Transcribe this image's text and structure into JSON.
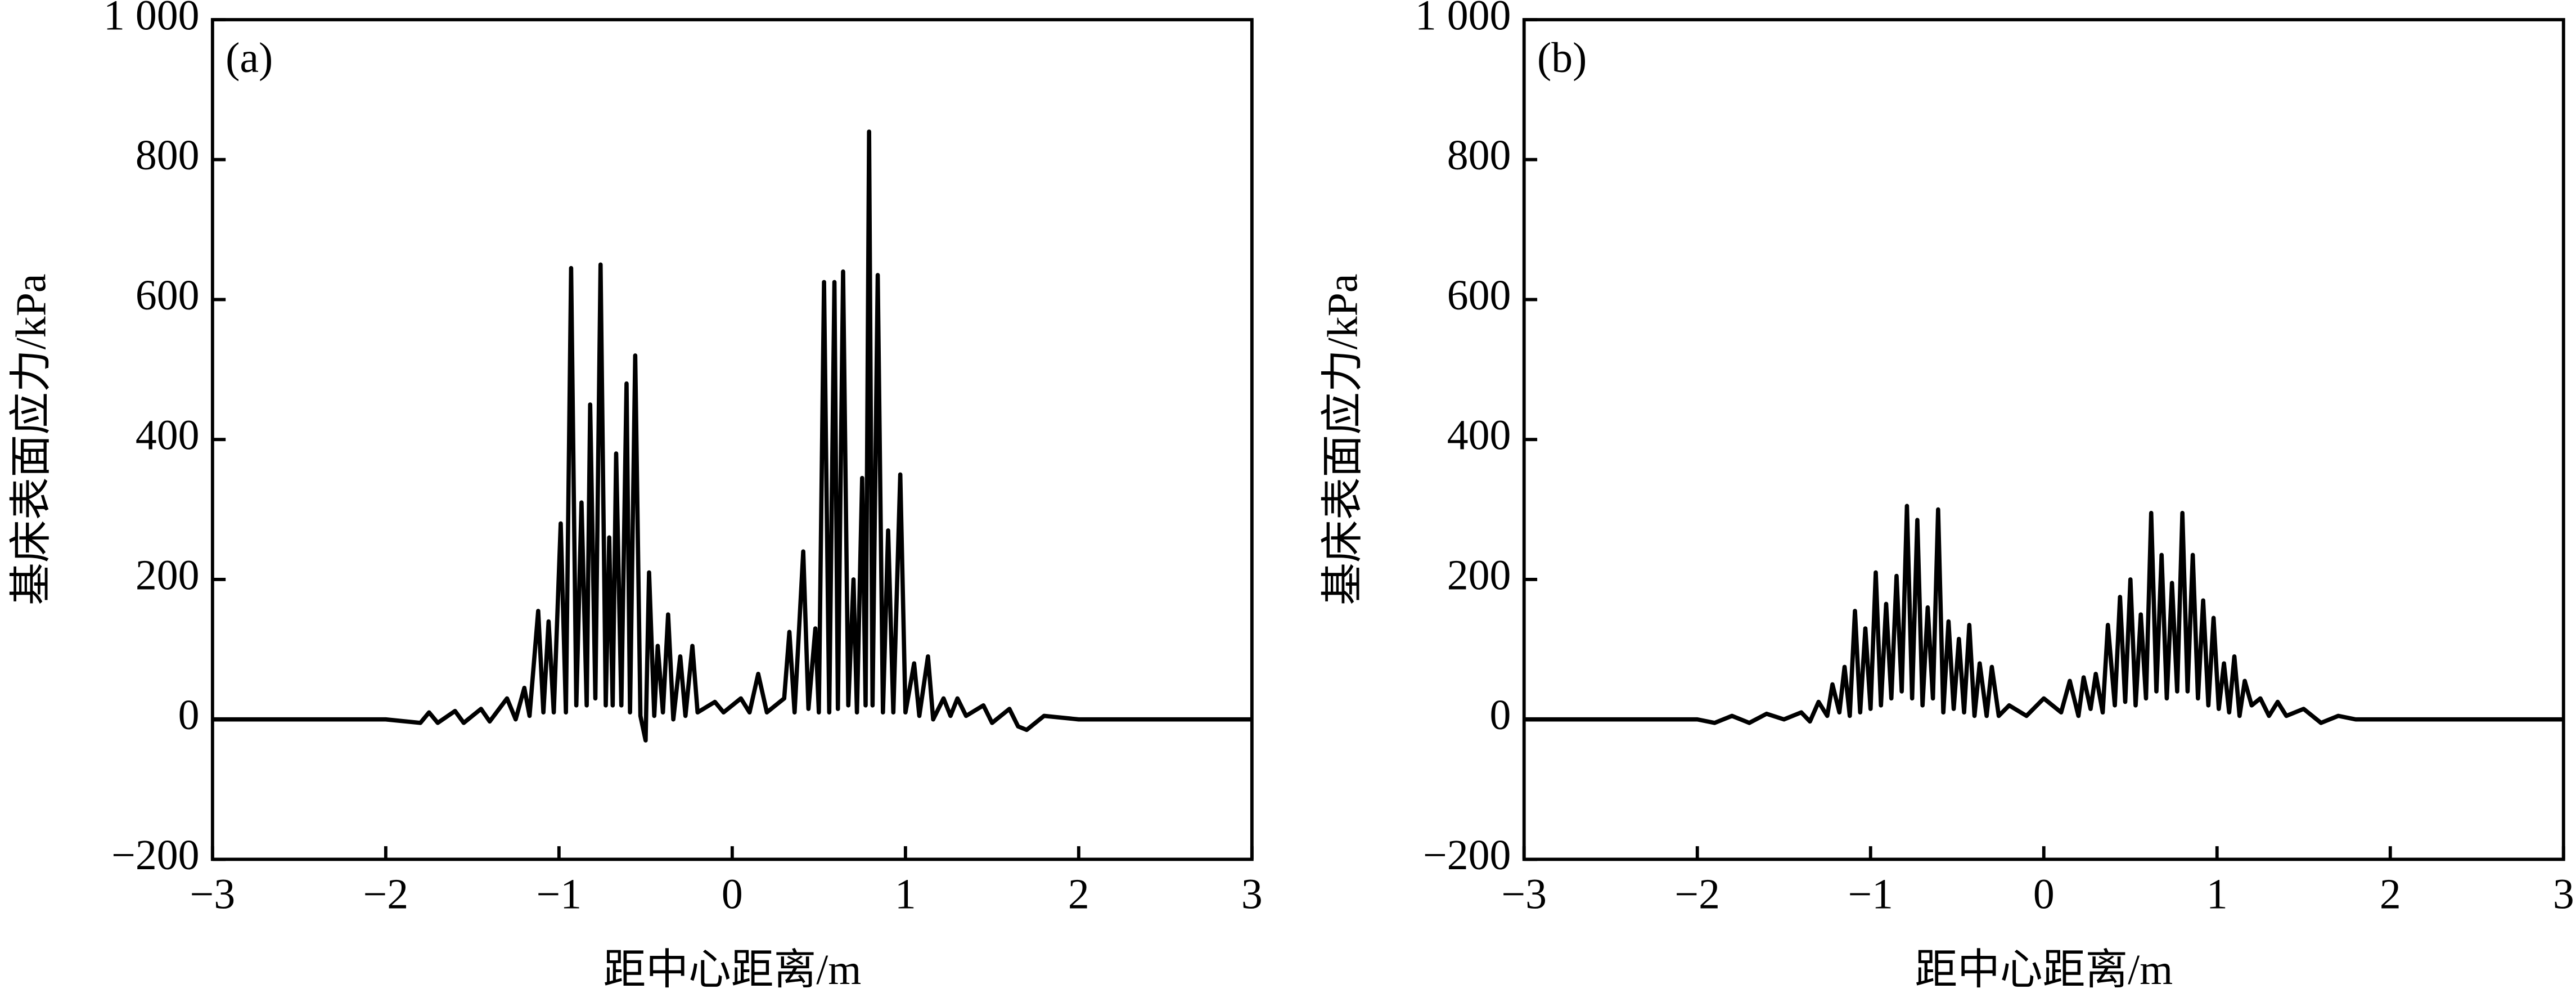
{
  "chart_data": [
    {
      "type": "line",
      "label": "(a)",
      "x_label": "距中心距离/m",
      "y_label": "基床表面应力/kPa",
      "color": "#000000",
      "x": [
        -3,
        -2.5,
        -2,
        -1.8,
        -1.75,
        -1.7,
        -1.6,
        -1.55,
        -1.45,
        -1.4,
        -1.3,
        -1.25,
        -1.2,
        -1.17,
        -1.12,
        -1.09,
        -1.06,
        -1.03,
        -0.99,
        -0.96,
        -0.93,
        -0.9,
        -0.87,
        -0.84,
        -0.82,
        -0.79,
        -0.76,
        -0.73,
        -0.71,
        -0.69,
        -0.67,
        -0.64,
        -0.61,
        -0.59,
        -0.56,
        -0.53,
        -0.5,
        -0.48,
        -0.45,
        -0.43,
        -0.4,
        -0.37,
        -0.34,
        -0.3,
        -0.27,
        -0.23,
        -0.2,
        -0.1,
        -0.05,
        0.05,
        0.1,
        0.15,
        0.2,
        0.3,
        0.33,
        0.36,
        0.41,
        0.44,
        0.48,
        0.5,
        0.53,
        0.56,
        0.59,
        0.61,
        0.64,
        0.67,
        0.7,
        0.72,
        0.75,
        0.77,
        0.79,
        0.81,
        0.84,
        0.87,
        0.9,
        0.93,
        0.97,
        1.0,
        1.05,
        1.08,
        1.13,
        1.16,
        1.22,
        1.26,
        1.3,
        1.35,
        1.45,
        1.5,
        1.6,
        1.65,
        1.7,
        1.8,
        2,
        2.5,
        3
      ],
      "values": [
        0,
        0,
        0,
        -5,
        10,
        -5,
        12,
        -5,
        15,
        -3,
        30,
        0,
        45,
        5,
        155,
        10,
        140,
        10,
        280,
        10,
        645,
        20,
        310,
        20,
        450,
        30,
        650,
        20,
        260,
        20,
        380,
        20,
        480,
        10,
        520,
        5,
        -30,
        210,
        5,
        105,
        10,
        150,
        0,
        90,
        5,
        105,
        10,
        25,
        10,
        30,
        10,
        65,
        10,
        30,
        125,
        10,
        240,
        15,
        130,
        10,
        625,
        10,
        625,
        15,
        640,
        20,
        200,
        10,
        345,
        20,
        840,
        20,
        635,
        10,
        270,
        10,
        350,
        10,
        80,
        5,
        90,
        0,
        30,
        5,
        30,
        5,
        20,
        -5,
        15,
        -10,
        -15,
        5,
        0,
        0,
        0
      ],
      "xlim": [
        -3,
        3
      ],
      "ylim": [
        -200,
        1000
      ],
      "xticks": [
        {
          "value": -3,
          "label": "−3"
        },
        {
          "value": -2,
          "label": "−2"
        },
        {
          "value": -1,
          "label": "−1"
        },
        0,
        1,
        2,
        3
      ],
      "yticks": [
        {
          "value": -200,
          "label": "−200"
        },
        0,
        200,
        400,
        600,
        800,
        {
          "value": 1000,
          "label": "1 000"
        }
      ]
    },
    {
      "type": "line",
      "label": "(b)",
      "x_label": "距中心距离/m",
      "y_label": "基床表面应力/kPa",
      "color": "#000000",
      "x": [
        -3,
        -2.5,
        -2,
        -1.9,
        -1.8,
        -1.7,
        -1.6,
        -1.5,
        -1.4,
        -1.35,
        -1.3,
        -1.25,
        -1.22,
        -1.18,
        -1.15,
        -1.12,
        -1.09,
        -1.06,
        -1.03,
        -1.0,
        -0.97,
        -0.94,
        -0.91,
        -0.88,
        -0.85,
        -0.82,
        -0.79,
        -0.76,
        -0.73,
        -0.7,
        -0.67,
        -0.64,
        -0.61,
        -0.58,
        -0.55,
        -0.52,
        -0.49,
        -0.46,
        -0.43,
        -0.4,
        -0.37,
        -0.33,
        -0.3,
        -0.26,
        -0.2,
        -0.1,
        0,
        0.1,
        0.15,
        0.2,
        0.23,
        0.27,
        0.3,
        0.34,
        0.37,
        0.41,
        0.44,
        0.47,
        0.5,
        0.53,
        0.56,
        0.59,
        0.62,
        0.65,
        0.68,
        0.71,
        0.74,
        0.77,
        0.8,
        0.83,
        0.86,
        0.89,
        0.92,
        0.95,
        0.98,
        1.01,
        1.04,
        1.07,
        1.1,
        1.13,
        1.16,
        1.2,
        1.25,
        1.3,
        1.35,
        1.4,
        1.5,
        1.6,
        1.7,
        1.8,
        2,
        2.5,
        3
      ],
      "values": [
        0,
        0,
        0,
        -5,
        5,
        -5,
        8,
        0,
        10,
        -3,
        25,
        5,
        50,
        10,
        75,
        5,
        155,
        10,
        130,
        15,
        210,
        20,
        165,
        30,
        205,
        40,
        305,
        30,
        285,
        20,
        160,
        30,
        300,
        10,
        140,
        15,
        115,
        10,
        135,
        5,
        80,
        5,
        75,
        5,
        20,
        5,
        30,
        10,
        55,
        5,
        60,
        15,
        65,
        10,
        135,
        20,
        175,
        25,
        200,
        20,
        150,
        30,
        295,
        40,
        235,
        30,
        195,
        40,
        295,
        40,
        235,
        30,
        170,
        20,
        145,
        15,
        80,
        10,
        90,
        5,
        55,
        20,
        30,
        5,
        25,
        5,
        15,
        -5,
        5,
        0,
        0,
        0,
        0
      ],
      "xlim": [
        -3,
        3
      ],
      "ylim": [
        -200,
        1000
      ],
      "xticks": [
        {
          "value": -3,
          "label": "−3"
        },
        {
          "value": -2,
          "label": "−2"
        },
        {
          "value": -1,
          "label": "−1"
        },
        0,
        1,
        2,
        3
      ],
      "yticks": [
        {
          "value": -200,
          "label": "−200"
        },
        0,
        200,
        400,
        600,
        800,
        {
          "value": 1000,
          "label": "1 000"
        }
      ]
    }
  ]
}
